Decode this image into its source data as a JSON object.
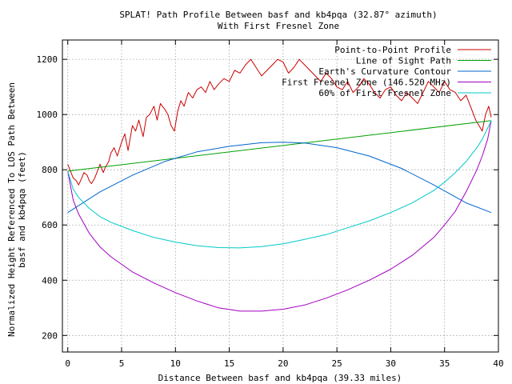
{
  "chart_data": {
    "type": "line",
    "title": "SPLAT! Path Profile Between basf and kb4pqa (32.87° azimuth)",
    "subtitle": "With First Fresnel Zone",
    "xlabel": "Distance Between basf and kb4pqa (39.33 miles)",
    "ylabel_line1": "Normalized Height Referenced To LOS Path Between",
    "ylabel_line2": "basf and kb4pqa (feet)",
    "xlim": [
      -0.5,
      40
    ],
    "ylim": [
      140,
      1270
    ],
    "xticks": [
      0,
      5,
      10,
      15,
      20,
      25,
      30,
      35,
      40
    ],
    "yticks": [
      200,
      400,
      600,
      800,
      1000,
      1200
    ],
    "grid": true,
    "legend_position": "top-right",
    "series": [
      {
        "name": "Point-to-Point Profile",
        "color": "#cc0000",
        "x": [
          0,
          0.3,
          0.5,
          0.8,
          1.0,
          1.3,
          1.5,
          1.8,
          2.0,
          2.2,
          2.5,
          2.8,
          3.0,
          3.3,
          3.5,
          3.8,
          4.0,
          4.3,
          4.6,
          5.0,
          5.3,
          5.6,
          6.0,
          6.3,
          6.6,
          7.0,
          7.3,
          7.6,
          8.0,
          8.3,
          8.6,
          9.0,
          9.3,
          9.6,
          9.9,
          10.2,
          10.5,
          10.8,
          11.2,
          11.6,
          12.0,
          12.4,
          12.8,
          13.2,
          13.6,
          14.0,
          14.5,
          15.0,
          15.5,
          16.0,
          16.5,
          17.0,
          17.5,
          18.0,
          18.5,
          19.0,
          19.5,
          20.0,
          20.5,
          21.0,
          21.5,
          22.0,
          22.5,
          23.0,
          23.5,
          24.0,
          24.5,
          25.0,
          25.5,
          26.0,
          26.5,
          27.0,
          27.5,
          28.0,
          28.5,
          29.0,
          29.5,
          30.0,
          30.5,
          31.0,
          31.5,
          32.0,
          32.5,
          33.0,
          33.5,
          34.0,
          34.5,
          35.0,
          35.5,
          36.0,
          36.5,
          37.0,
          37.3,
          37.6,
          37.9,
          38.2,
          38.5,
          38.8,
          39.1,
          39.33
        ],
        "y": [
          820,
          790,
          770,
          760,
          745,
          770,
          790,
          780,
          760,
          750,
          770,
          800,
          820,
          790,
          810,
          830,
          860,
          880,
          850,
          900,
          930,
          870,
          960,
          940,
          980,
          920,
          990,
          1000,
          1030,
          980,
          1040,
          1020,
          1000,
          960,
          940,
          1010,
          1050,
          1030,
          1080,
          1060,
          1090,
          1100,
          1080,
          1120,
          1090,
          1110,
          1130,
          1120,
          1160,
          1150,
          1180,
          1200,
          1170,
          1140,
          1160,
          1180,
          1200,
          1190,
          1150,
          1170,
          1200,
          1180,
          1160,
          1140,
          1120,
          1150,
          1130,
          1100,
          1090,
          1120,
          1080,
          1100,
          1130,
          1110,
          1080,
          1060,
          1090,
          1100,
          1070,
          1050,
          1080,
          1060,
          1040,
          1080,
          1120,
          1100,
          1080,
          1120,
          1090,
          1080,
          1050,
          1070,
          1040,
          1010,
          980,
          960,
          940,
          1000,
          1030,
          990
        ]
      },
      {
        "name": "Line of Sight Path",
        "color": "#00a000",
        "x": [
          0,
          39.33
        ],
        "y": [
          795,
          978
        ]
      },
      {
        "name": "Earth's Curvature Contour",
        "color": "#0066cc",
        "x": [
          0,
          3,
          6,
          9,
          12,
          15,
          18,
          20,
          22,
          25,
          28,
          31,
          34,
          37,
          39.33
        ],
        "y": [
          645,
          720,
          780,
          830,
          865,
          885,
          898,
          900,
          897,
          880,
          850,
          805,
          745,
          680,
          645
        ]
      },
      {
        "name": "First Fresnel Zone (146.520 MHz)",
        "color": "#a000c0",
        "x": [
          0,
          0.5,
          1,
          2,
          3,
          4,
          6,
          8,
          10,
          12,
          14,
          16,
          18,
          20,
          22,
          24,
          26,
          28,
          30,
          32,
          34,
          35,
          36,
          37,
          38,
          38.5,
          39,
          39.33
        ],
        "y": [
          795,
          690,
          640,
          570,
          520,
          485,
          430,
          390,
          355,
          325,
          300,
          288,
          288,
          295,
          310,
          335,
          365,
          400,
          440,
          490,
          555,
          600,
          650,
          720,
          800,
          850,
          910,
          978
        ]
      },
      {
        "name": "60% of First Fresnel Zone",
        "color": "#00c8c8",
        "x": [
          0,
          0.5,
          1,
          2,
          3,
          4,
          6,
          8,
          10,
          12,
          14,
          16,
          18,
          20,
          22,
          24,
          26,
          28,
          30,
          32,
          34,
          35,
          36,
          37,
          38,
          38.5,
          39,
          39.33
        ],
        "y": [
          795,
          730,
          700,
          660,
          630,
          610,
          580,
          555,
          538,
          525,
          518,
          517,
          522,
          532,
          548,
          565,
          590,
          615,
          645,
          680,
          725,
          755,
          790,
          830,
          880,
          910,
          950,
          978
        ]
      }
    ]
  }
}
